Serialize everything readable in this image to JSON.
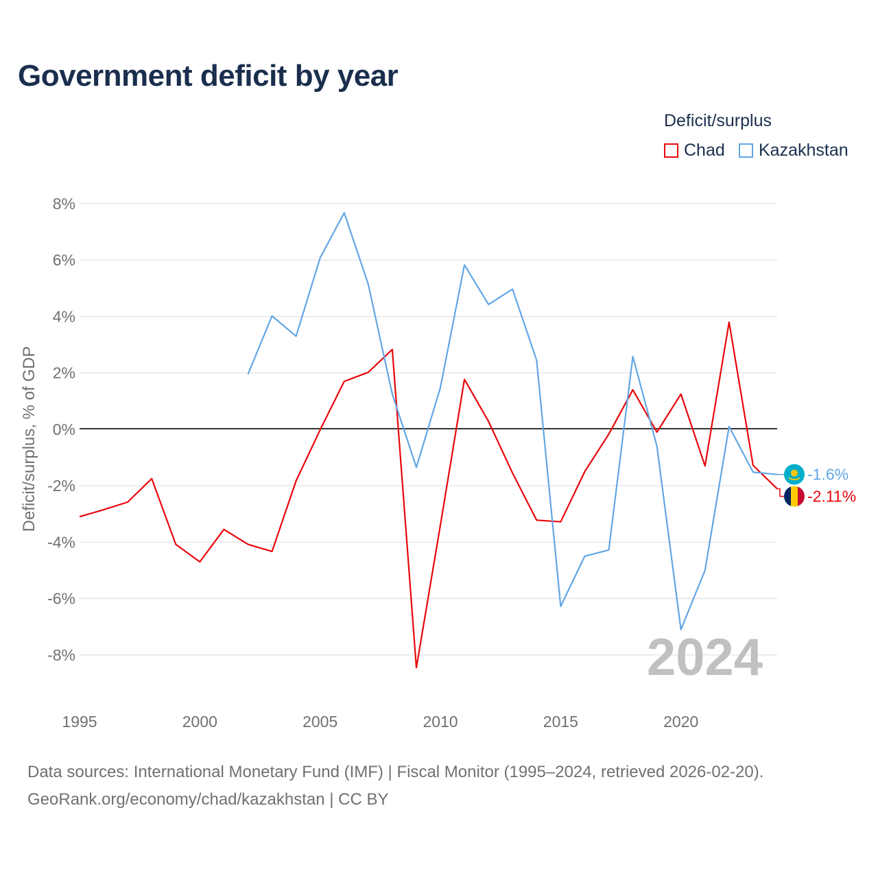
{
  "title": "Government deficit by year",
  "legend": {
    "title": "Deficit/surplus",
    "items": [
      {
        "label": "Chad",
        "color": "#e8070b"
      },
      {
        "label": "Kazakhstan",
        "color": "#62a6e4"
      }
    ]
  },
  "chart_data": {
    "type": "line",
    "title": "Government deficit by year",
    "xlabel": "",
    "ylabel": "Deficit/surplus, % of GDP",
    "xlim": [
      1995,
      2024
    ],
    "ylim": [
      -10,
      8
    ],
    "grid": true,
    "x_ticks": [
      1995,
      2000,
      2005,
      2010,
      2015,
      2020
    ],
    "x_tick_labels": [
      "1995",
      "2000",
      "2005",
      "2010",
      "2015",
      "2020"
    ],
    "y_ticks": [
      8,
      6,
      4,
      2,
      0,
      -2,
      -4,
      -6,
      -8
    ],
    "y_tick_labels": [
      "8%",
      "6%",
      "4%",
      "2%",
      "0%",
      "-2%",
      "-4%",
      "-6%",
      "-8%"
    ],
    "year_watermark": "2024",
    "series": [
      {
        "name": "Chad",
        "color": "#e8070b",
        "x": [
          1995,
          1996,
          1997,
          1998,
          1999,
          2000,
          2001,
          2002,
          2003,
          2004,
          2005,
          2006,
          2007,
          2008,
          2009,
          2010,
          2011,
          2012,
          2013,
          2014,
          2015,
          2016,
          2017,
          2018,
          2019,
          2020,
          2021,
          2022,
          2023,
          2024
        ],
        "values": [
          -3.1,
          -2.85,
          -2.58,
          -1.75,
          -4.08,
          -4.7,
          -3.55,
          -4.08,
          -4.33,
          -1.83,
          -0.02,
          1.7,
          2.02,
          2.83,
          -8.45,
          -3.4,
          1.77,
          0.28,
          -1.55,
          -3.22,
          -3.28,
          -1.5,
          -0.17,
          1.4,
          -0.1,
          1.25,
          -1.3,
          3.8,
          -1.28,
          -2.11
        ],
        "end_label": "-2.11%"
      },
      {
        "name": "Kazakhstan",
        "color": "#62a6e4",
        "x": [
          2002,
          2003,
          2004,
          2005,
          2006,
          2007,
          2008,
          2009,
          2010,
          2011,
          2012,
          2013,
          2014,
          2015,
          2016,
          2017,
          2018,
          2019,
          2020,
          2021,
          2022,
          2023,
          2024
        ],
        "values": [
          1.95,
          4.02,
          3.3,
          6.08,
          7.68,
          5.15,
          1.25,
          -1.35,
          1.48,
          5.83,
          4.43,
          4.97,
          2.45,
          -6.28,
          -4.5,
          -4.28,
          2.58,
          -0.6,
          -7.1,
          -5.0,
          0.1,
          -1.52,
          -1.6
        ],
        "end_label": "-1.6%"
      }
    ]
  },
  "source": {
    "line1": "Data sources: International Monetary Fund (IMF) | Fiscal Monitor (1995–2024, retrieved 2026-02-20).",
    "line2": "GeoRank.org/economy/chad/kazakhstan | CC BY"
  }
}
